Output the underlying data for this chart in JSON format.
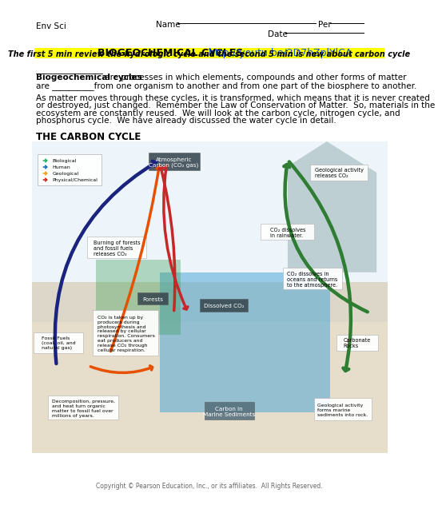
{
  "bg_color": "#ffffff",
  "header_left": "Env Sci",
  "header_name": "Name _________________________ Per _____",
  "header_date": "Date _____________",
  "title": "BIOGEOCHEMICAL CYCLES",
  "title_link": "  http://youtu.be/2D7hZplYlCA",
  "highlight_text": "The first 5 min review the hydrologic cycle and the second 5 min is new about carbon cycle",
  "highlight_color": "#ffff00",
  "para1_bold": "Biogeochemical cycles",
  "para1_rest_line1": " are processes in which elements, compounds and other forms of matter",
  "para1_rest_line2": "are __________from one organism to another and from one part of the biosphere to another.",
  "para2_lines": [
    "As matter moves through these cycles, it is transformed, which means that it is never created",
    "or destroyed, just changed.  Remember the Law of Conservation of Matter.  So, materials in the",
    "ecosystem are constantly reused.  We will look at the carbon cycle, nitrogen cycle, and",
    "phosphorus cycle.  We have already discussed the water cycle in detail."
  ],
  "section_title": "THE CARBON CYCLE",
  "copyright": "Copyright © Pearson Education, Inc., or its affiliates.  All Rights Reserved.",
  "font_size_header": 7.5,
  "font_size_title": 9,
  "font_size_body": 7.5,
  "font_size_section": 8.5,
  "font_size_highlight": 7,
  "font_size_copyright": 5.5,
  "legend_items": [
    [
      "Biological",
      "#27ae60"
    ],
    [
      "Human",
      "#1a6bb5"
    ],
    [
      "Geological",
      "#e8a020"
    ],
    [
      "Physical/Chemical",
      "#c62828"
    ]
  ],
  "blue_color": "#1a237e",
  "green_color": "#2e7d32",
  "orange_color": "#e65100",
  "red_color": "#c62828",
  "dark_box_color": "#37474f",
  "dark_box_color2": "#546e7a"
}
